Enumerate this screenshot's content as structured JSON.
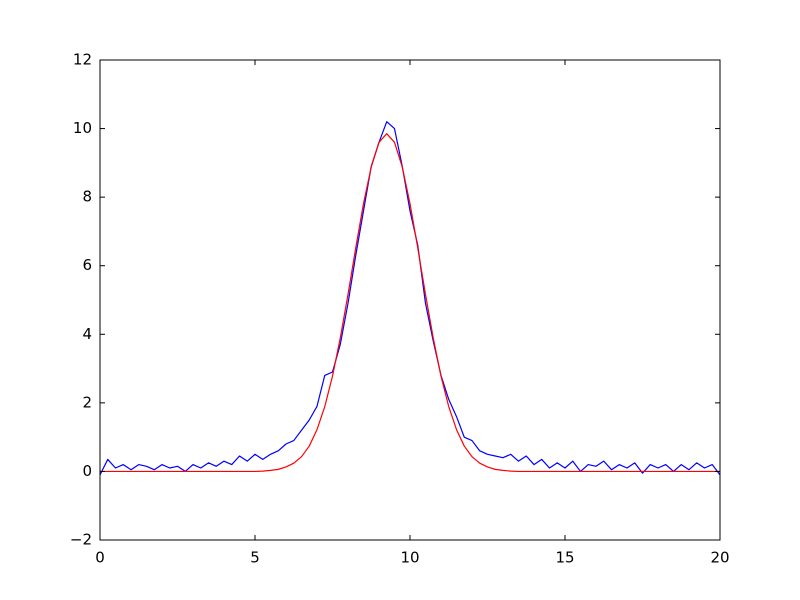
{
  "chart_data": {
    "type": "line",
    "x": [
      0,
      0.25,
      0.5,
      0.75,
      1,
      1.25,
      1.5,
      1.75,
      2,
      2.25,
      2.5,
      2.75,
      3,
      3.25,
      3.5,
      3.75,
      4,
      4.25,
      4.5,
      4.75,
      5,
      5.25,
      5.5,
      5.75,
      6,
      6.25,
      6.5,
      6.75,
      7,
      7.25,
      7.5,
      7.75,
      8,
      8.25,
      8.5,
      8.75,
      9,
      9.25,
      9.5,
      9.75,
      10,
      10.25,
      10.5,
      10.75,
      11,
      11.25,
      11.5,
      11.75,
      12,
      12.25,
      12.5,
      12.75,
      13,
      13.25,
      13.5,
      13.75,
      14,
      14.25,
      14.5,
      14.75,
      15,
      15.25,
      15.5,
      15.75,
      16,
      16.25,
      16.5,
      16.75,
      17,
      17.25,
      17.5,
      17.75,
      18,
      18.25,
      18.5,
      18.75,
      19,
      19.25,
      19.5,
      19.75,
      20
    ],
    "series": [
      {
        "color": "#0000ff",
        "values": [
          -0.1,
          0.35,
          0.1,
          0.2,
          0.05,
          0.2,
          0.15,
          0.05,
          0.2,
          0.1,
          0.15,
          0.0,
          0.2,
          0.1,
          0.25,
          0.15,
          0.3,
          0.2,
          0.45,
          0.3,
          0.5,
          0.35,
          0.5,
          0.6,
          0.8,
          0.9,
          1.2,
          1.5,
          1.9,
          2.8,
          2.9,
          3.7,
          4.9,
          6.3,
          7.6,
          8.9,
          9.6,
          10.2,
          10.0,
          8.9,
          7.6,
          6.6,
          4.9,
          3.8,
          2.8,
          2.1,
          1.6,
          1.0,
          0.9,
          0.6,
          0.5,
          0.45,
          0.4,
          0.5,
          0.3,
          0.45,
          0.2,
          0.35,
          0.1,
          0.25,
          0.1,
          0.3,
          0.0,
          0.2,
          0.15,
          0.3,
          0.05,
          0.2,
          0.1,
          0.25,
          -0.05,
          0.2,
          0.1,
          0.2,
          0.0,
          0.2,
          0.05,
          0.25,
          0.1,
          0.2,
          -0.1
        ]
      },
      {
        "color": "#ff0000",
        "values": [
          0,
          0,
          0,
          0,
          0,
          0,
          0,
          0,
          0,
          0,
          0,
          0,
          0,
          0,
          0,
          0,
          0,
          0,
          0,
          0,
          0,
          0.01,
          0.03,
          0.06,
          0.13,
          0.24,
          0.43,
          0.74,
          1.22,
          1.89,
          2.78,
          3.89,
          5.16,
          6.52,
          7.81,
          8.88,
          9.6,
          9.85,
          9.6,
          8.88,
          7.81,
          6.52,
          5.16,
          3.89,
          2.78,
          1.89,
          1.22,
          0.74,
          0.43,
          0.24,
          0.13,
          0.06,
          0.03,
          0.01,
          0,
          0,
          0,
          0,
          0,
          0,
          0,
          0,
          0,
          0,
          0,
          0,
          0,
          0,
          0,
          0,
          0,
          0,
          0,
          0,
          0,
          0,
          0,
          0,
          0,
          0,
          0
        ]
      }
    ],
    "xlim": [
      0,
      20
    ],
    "xticks": [
      0,
      5,
      10,
      15,
      20
    ],
    "ylim": [
      -2,
      12
    ],
    "yticks": [
      {
        "value": -2,
        "label": "−2"
      },
      0,
      2,
      4,
      6,
      8,
      10,
      12
    ]
  }
}
